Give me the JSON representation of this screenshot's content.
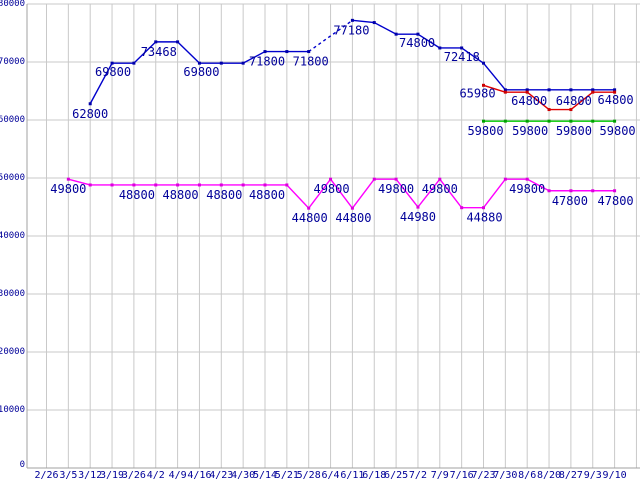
{
  "chart_data": {
    "type": "line",
    "title": "",
    "xlabel": "",
    "ylabel": "",
    "ylim": [
      0,
      80000
    ],
    "ytick_interval": 10000,
    "grid": true,
    "legend": "none",
    "colors": {
      "background": "#ffffff",
      "grid": "#c9c9c9",
      "axis": "#a0a0a0",
      "label_text": "#000099"
    },
    "y_ticks": [
      "0",
      "10000",
      "20000",
      "30000",
      "40000",
      "50000",
      "60000",
      "70000",
      "80000"
    ],
    "categories": [
      "2/26",
      "3/5",
      "3/12",
      "3/19",
      "3/26",
      "4/2",
      "4/9",
      "4/16",
      "4/23",
      "4/30",
      "5/14",
      "5/21",
      "5/28",
      "6/4",
      "6/11",
      "6/18",
      "6/25",
      "7/2",
      "7/9",
      "7/16",
      "7/23",
      "7/30",
      "8/6",
      "8/20",
      "8/27",
      "9/3",
      "9/10"
    ],
    "series": [
      {
        "name": "blue-series",
        "color": "#0000CC",
        "marker_color": "#0000AA",
        "dashed_segments": [
          [
            "5/28",
            "6/11"
          ]
        ],
        "points": [
          {
            "date": "3/12",
            "value": 62800,
            "label": "62800",
            "dy": 10
          },
          {
            "date": "3/19",
            "value": 69800,
            "label": "69800",
            "dx": 1,
            "dy": 9
          },
          {
            "date": "3/26",
            "value": 69800
          },
          {
            "date": "4/2",
            "value": 73468,
            "label": "73468",
            "dx": 3,
            "dy": 10
          },
          {
            "date": "4/9",
            "value": 73468
          },
          {
            "date": "4/16",
            "value": 69800,
            "label": "69800",
            "dx": 2,
            "dy": 9
          },
          {
            "date": "4/23",
            "value": 69800
          },
          {
            "date": "4/30",
            "value": 69800
          },
          {
            "date": "5/14",
            "value": 71800,
            "label": "71800",
            "dx": 2,
            "dy": 10
          },
          {
            "date": "5/21",
            "value": 71800
          },
          {
            "date": "5/28",
            "value": 71800,
            "label": "71800",
            "dx": 2,
            "dy": 10
          },
          {
            "date": "6/11",
            "value": 77180,
            "label": "77180",
            "dx": -1,
            "dy": 10
          },
          {
            "date": "6/18",
            "value": 76800
          },
          {
            "date": "6/25",
            "value": 74800,
            "label": "74800",
            "dx": 21,
            "dy": 9
          },
          {
            "date": "7/2",
            "value": 74800
          },
          {
            "date": "7/9",
            "value": 72418,
            "label": "72418",
            "dx": 22,
            "dy": 9
          },
          {
            "date": "7/16",
            "value": 72418
          },
          {
            "date": "7/23",
            "value": 69800
          },
          {
            "date": "7/30",
            "value": 65200
          },
          {
            "date": "8/6",
            "value": 65200
          },
          {
            "date": "8/20",
            "value": 65200
          },
          {
            "date": "8/27",
            "value": 65200
          },
          {
            "date": "9/3",
            "value": 65200
          },
          {
            "date": "9/10",
            "value": 65200
          }
        ]
      },
      {
        "name": "magenta-series",
        "color": "#FF00FF",
        "marker_color": "#DD00DD",
        "dashed_segments": [],
        "points": [
          {
            "date": "3/5",
            "value": 49800,
            "label": "49800",
            "dy": 10
          },
          {
            "date": "3/12",
            "value": 48800
          },
          {
            "date": "3/19",
            "value": 48800
          },
          {
            "date": "3/26",
            "value": 48800,
            "label": "48800",
            "dx": 3,
            "dy": 10
          },
          {
            "date": "4/2",
            "value": 48800
          },
          {
            "date": "4/9",
            "value": 48800,
            "label": "48800",
            "dx": 3,
            "dy": 10
          },
          {
            "date": "4/16",
            "value": 48800
          },
          {
            "date": "4/23",
            "value": 48800,
            "label": "48800",
            "dx": 3,
            "dy": 10
          },
          {
            "date": "4/30",
            "value": 48800
          },
          {
            "date": "5/14",
            "value": 48800,
            "label": "48800",
            "dx": 2,
            "dy": 10
          },
          {
            "date": "5/21",
            "value": 48800
          },
          {
            "date": "5/28",
            "value": 44800,
            "label": "44800",
            "dx": 1,
            "dy": 10
          },
          {
            "date": "6/4",
            "value": 49800,
            "label": "49800",
            "dx": 1,
            "dy": 10
          },
          {
            "date": "6/11",
            "value": 44800,
            "label": "44800",
            "dx": 1,
            "dy": 10
          },
          {
            "date": "6/18",
            "value": 49800
          },
          {
            "date": "6/25",
            "value": 49800,
            "label": "49800",
            "dy": 10
          },
          {
            "date": "7/2",
            "value": 44980,
            "label": "44980",
            "dy": 10
          },
          {
            "date": "7/9",
            "value": 49800,
            "label": "49800",
            "dy": 10
          },
          {
            "date": "7/16",
            "value": 44880
          },
          {
            "date": "7/23",
            "value": 44880,
            "label": "44880",
            "dx": 1,
            "dy": 10
          },
          {
            "date": "7/30",
            "value": 49800
          },
          {
            "date": "8/6",
            "value": 49800,
            "label": "49800",
            "dy": 10
          },
          {
            "date": "8/20",
            "value": 47800
          },
          {
            "date": "8/27",
            "value": 47800,
            "label": "47800",
            "dx": -1,
            "dy": 10
          },
          {
            "date": "9/3",
            "value": 47800
          },
          {
            "date": "9/10",
            "value": 47800,
            "label": "47800",
            "dx": 1,
            "dy": 10
          }
        ]
      },
      {
        "name": "red-series",
        "color": "#E00000",
        "marker_color": "#CC0000",
        "dashed_segments": [],
        "points": [
          {
            "date": "7/23",
            "value": 65980,
            "label": "65980",
            "dx": -6,
            "dy": 8
          },
          {
            "date": "7/30",
            "value": 64800
          },
          {
            "date": "8/6",
            "value": 64800,
            "label": "64800",
            "dx": 2,
            "dy": 9
          },
          {
            "date": "8/20",
            "value": 61800
          },
          {
            "date": "8/27",
            "value": 61800
          },
          {
            "date": "9/3",
            "value": 64800,
            "label": "64800",
            "dx": -19,
            "dy": 9
          },
          {
            "date": "9/10",
            "value": 64800,
            "label": "64800",
            "dx": 1,
            "dy": 8
          }
        ]
      },
      {
        "name": "green-series",
        "color": "#00CC00",
        "marker_color": "#00A000",
        "dashed_segments": [],
        "points": [
          {
            "date": "7/23",
            "value": 59800,
            "label": "59800",
            "dx": 2,
            "dy": 10
          },
          {
            "date": "7/30",
            "value": 59800
          },
          {
            "date": "8/6",
            "value": 59800,
            "label": "59800",
            "dx": 3,
            "dy": 10
          },
          {
            "date": "8/20",
            "value": 59800
          },
          {
            "date": "8/27",
            "value": 59800,
            "label": "59800",
            "dx": 3,
            "dy": 10
          },
          {
            "date": "9/3",
            "value": 59800
          },
          {
            "date": "9/10",
            "value": 59800,
            "label": "59800",
            "dx": 3,
            "dy": 10
          }
        ]
      }
    ]
  }
}
